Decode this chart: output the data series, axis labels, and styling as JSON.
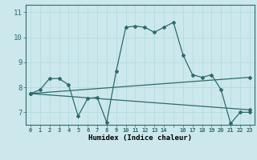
{
  "xlabel": "Humidex (Indice chaleur)",
  "background_color": "#cce8ec",
  "grid_color": "#b0d8de",
  "line_color": "#2e6b6b",
  "xlim": [
    -0.5,
    23.5
  ],
  "ylim": [
    6.5,
    11.3
  ],
  "yticks": [
    7,
    8,
    9,
    10,
    11
  ],
  "xtick_vals": [
    0,
    1,
    2,
    3,
    4,
    5,
    6,
    7,
    8,
    9,
    10,
    11,
    12,
    13,
    14,
    16,
    17,
    18,
    19,
    20,
    21,
    22,
    23
  ],
  "lines": [
    {
      "x": [
        0,
        1,
        2,
        3,
        4,
        5,
        6,
        7,
        8,
        9,
        10,
        11,
        12,
        13,
        14,
        15,
        16,
        17,
        18,
        19,
        20,
        21,
        22,
        23
      ],
      "y": [
        7.75,
        7.9,
        8.35,
        8.35,
        8.1,
        6.85,
        7.55,
        7.6,
        6.6,
        8.65,
        10.4,
        10.45,
        10.4,
        10.2,
        10.4,
        10.6,
        9.3,
        8.5,
        8.4,
        8.5,
        7.9,
        6.55,
        7.0,
        7.0
      ]
    },
    {
      "x": [
        0,
        23
      ],
      "y": [
        7.75,
        8.4
      ]
    },
    {
      "x": [
        0,
        23
      ],
      "y": [
        7.75,
        7.1
      ]
    }
  ]
}
